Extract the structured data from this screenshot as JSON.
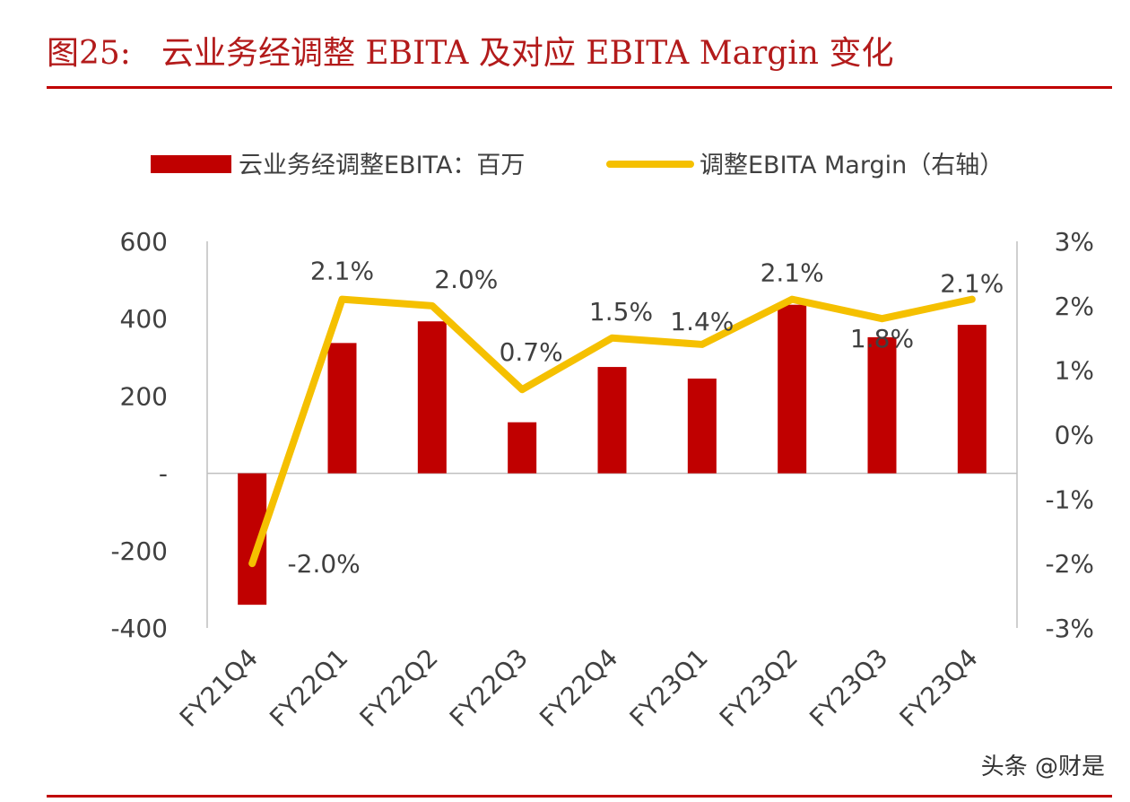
{
  "page": {
    "figure_number": "图25:",
    "figure_title": "云业务经调整 EBITA 及对应 EBITA Margin 变化",
    "watermark": "头条 @财是"
  },
  "colors": {
    "accent": "#c00000",
    "bar": "#c00000",
    "line": "#f5c000",
    "axis": "#bfbfbf",
    "text": "#404040"
  },
  "chart_data": {
    "type": "bar",
    "categories": [
      "FY21Q4",
      "FY22Q1",
      "FY22Q2",
      "FY22Q3",
      "FY22Q4",
      "FY23Q1",
      "FY23Q2",
      "FY23Q3",
      "FY23Q4"
    ],
    "series": [
      {
        "name": "云业务经调整EBITA：百万",
        "type": "bar",
        "axis": "left",
        "values": [
          -340,
          337,
          393,
          132,
          275,
          245,
          436,
          352,
          384
        ]
      },
      {
        "name": "调整EBITA Margin（右轴）",
        "type": "line",
        "axis": "right",
        "values": [
          -2.0,
          2.1,
          2.0,
          0.7,
          1.5,
          1.4,
          2.1,
          1.8,
          2.1
        ],
        "labels": [
          "-2.0%",
          "2.1%",
          "2.0%",
          "0.7%",
          "1.5%",
          "1.4%",
          "2.1%",
          "1.8%",
          "2.1%"
        ]
      }
    ],
    "y_left": {
      "ylim": [
        -400,
        600
      ],
      "ticks": [
        600,
        400,
        200,
        0,
        -200,
        -400
      ],
      "tick_labels": [
        "600",
        "400",
        "200",
        "-",
        "-200",
        "-400"
      ]
    },
    "y_right": {
      "ylim": [
        -3,
        3
      ],
      "ticks": [
        3,
        2,
        1,
        0,
        -1,
        -2,
        -3
      ],
      "tick_labels": [
        "3%",
        "2%",
        "1%",
        "0%",
        "-1%",
        "-2%",
        "-3%"
      ]
    },
    "legend_position": "top",
    "grid": false
  }
}
